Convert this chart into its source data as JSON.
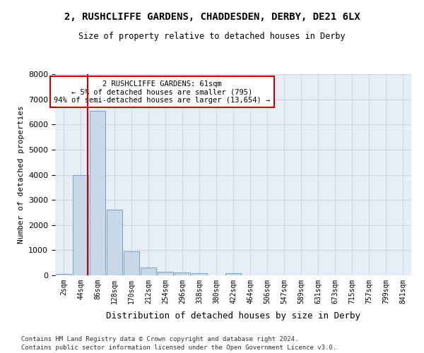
{
  "title": "2, RUSHCLIFFE GARDENS, CHADDESDEN, DERBY, DE21 6LX",
  "subtitle": "Size of property relative to detached houses in Derby",
  "xlabel": "Distribution of detached houses by size in Derby",
  "ylabel": "Number of detached properties",
  "footer_line1": "Contains HM Land Registry data © Crown copyright and database right 2024.",
  "footer_line2": "Contains public sector information licensed under the Open Government Licence v3.0.",
  "bin_labels": [
    "2sqm",
    "44sqm",
    "86sqm",
    "128sqm",
    "170sqm",
    "212sqm",
    "254sqm",
    "296sqm",
    "338sqm",
    "380sqm",
    "422sqm",
    "464sqm",
    "506sqm",
    "547sqm",
    "589sqm",
    "631sqm",
    "673sqm",
    "715sqm",
    "757sqm",
    "799sqm",
    "841sqm"
  ],
  "bar_values": [
    70,
    4000,
    6550,
    2600,
    950,
    320,
    150,
    100,
    80,
    0,
    80,
    0,
    0,
    0,
    0,
    0,
    0,
    0,
    0,
    0,
    0
  ],
  "bar_color": "#c9d9e8",
  "bar_edge_color": "#7aaac8",
  "grid_color": "#d0d8e8",
  "background_color": "#e8eef5",
  "property_value": 61,
  "annotation_line1": "2 RUSHCLIFFE GARDENS: 61sqm",
  "annotation_line2": "← 5% of detached houses are smaller (795)",
  "annotation_line3": "94% of semi-detached houses are larger (13,654) →",
  "red_line_color": "#cc0000",
  "annotation_box_color": "#cc0000",
  "ylim": [
    0,
    8000
  ],
  "yticks": [
    0,
    1000,
    2000,
    3000,
    4000,
    5000,
    6000,
    7000,
    8000
  ]
}
